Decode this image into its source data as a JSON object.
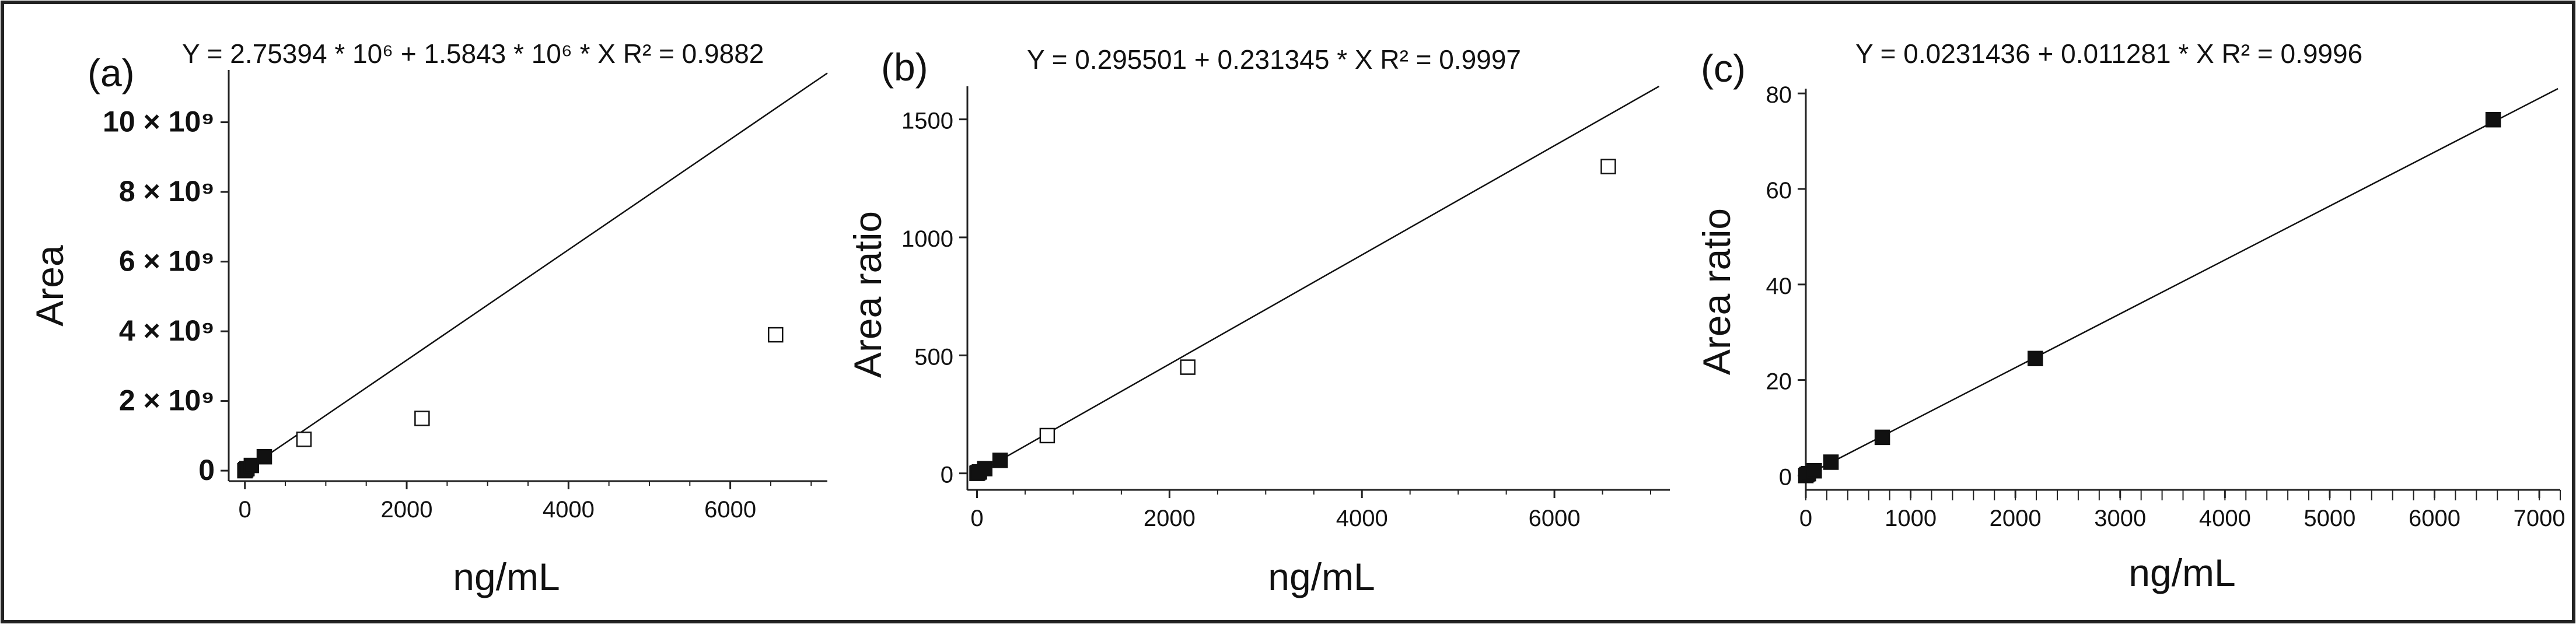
{
  "chart_data": [
    {
      "type": "scatter",
      "panel_label": "(a)",
      "equation": "Y = 2.75394 * 10⁶ + 1.5843 * 10⁶ * X  R² = 0.9882",
      "fit": {
        "intercept": 2753940,
        "slope": 1584300
      },
      "xlabel": "ng/mL",
      "ylabel": "Area",
      "xlim": [
        -200,
        7200
      ],
      "ylim": [
        -300000000,
        11500000000
      ],
      "x_ticks": [
        0,
        2000,
        4000,
        6000
      ],
      "x_tick_labels": [
        "0",
        "2000",
        "4000",
        "6000"
      ],
      "y_ticks": [
        0,
        2000000000,
        4000000000,
        6000000000,
        8000000000,
        10000000000
      ],
      "y_tick_labels": [
        "0",
        "2 × 10⁹",
        "4 × 10⁹",
        "6 × 10⁹",
        "8 × 10⁹",
        "10 × 10⁹"
      ],
      "points": [
        {
          "x": 0,
          "y": 0,
          "filled": true
        },
        {
          "x": 10,
          "y": 30000000,
          "filled": true
        },
        {
          "x": 25,
          "y": 60000000,
          "filled": true
        },
        {
          "x": 80,
          "y": 150000000,
          "filled": true
        },
        {
          "x": 240,
          "y": 400000000,
          "filled": true
        },
        {
          "x": 730,
          "y": 900000000,
          "filled": false
        },
        {
          "x": 2190,
          "y": 1500000000,
          "filled": false
        },
        {
          "x": 6560,
          "y": 3900000000,
          "filled": false
        }
      ]
    },
    {
      "type": "scatter",
      "panel_label": "(b)",
      "equation": "Y = 0.295501 + 0.231345 * X  R² = 0.9997",
      "fit": {
        "intercept": 0.295501,
        "slope": 0.231345
      },
      "xlabel": "ng/mL",
      "ylabel": "Area ratio",
      "xlim": [
        -100,
        7200
      ],
      "ylim": [
        -70,
        1640
      ],
      "x_ticks": [
        0,
        2000,
        4000,
        6000
      ],
      "x_tick_labels": [
        "0",
        "2000",
        "4000",
        "6000"
      ],
      "y_ticks": [
        0,
        500,
        1000,
        1500
      ],
      "y_tick_labels": [
        "0",
        "500",
        "1000",
        "1500"
      ],
      "points": [
        {
          "x": 0,
          "y": 0,
          "filled": true
        },
        {
          "x": 10,
          "y": 3,
          "filled": true
        },
        {
          "x": 25,
          "y": 6,
          "filled": true
        },
        {
          "x": 80,
          "y": 20,
          "filled": true
        },
        {
          "x": 240,
          "y": 55,
          "filled": true
        },
        {
          "x": 730,
          "y": 160,
          "filled": false
        },
        {
          "x": 2190,
          "y": 450,
          "filled": false
        },
        {
          "x": 6560,
          "y": 1300,
          "filled": false
        }
      ]
    },
    {
      "type": "scatter",
      "panel_label": "(c)",
      "equation": "Y = 0.0231436 + 0.011281 * X  R² = 0.9996",
      "fit": {
        "intercept": 0.0231436,
        "slope": 0.011281
      },
      "xlabel": "ng/mL",
      "ylabel": "Area ratio",
      "xlim": [
        0,
        7200
      ],
      "ylim": [
        -3,
        81
      ],
      "x_ticks": [
        0,
        1000,
        2000,
        3000,
        4000,
        5000,
        6000,
        7000
      ],
      "x_tick_labels": [
        "0",
        "1000",
        "2000",
        "3000",
        "4000",
        "5000",
        "6000",
        "7000"
      ],
      "y_ticks": [
        0,
        20,
        40,
        60,
        80
      ],
      "y_tick_labels": [
        "0",
        "20",
        "40",
        "60",
        "80"
      ],
      "points": [
        {
          "x": 0,
          "y": 0,
          "filled": true
        },
        {
          "x": 10,
          "y": 0.2,
          "filled": true
        },
        {
          "x": 25,
          "y": 0.4,
          "filled": true
        },
        {
          "x": 80,
          "y": 1,
          "filled": true
        },
        {
          "x": 240,
          "y": 2.8,
          "filled": true
        },
        {
          "x": 730,
          "y": 8,
          "filled": true
        },
        {
          "x": 2190,
          "y": 24.5,
          "filled": true
        },
        {
          "x": 6560,
          "y": 74.5,
          "filled": true
        }
      ]
    }
  ]
}
